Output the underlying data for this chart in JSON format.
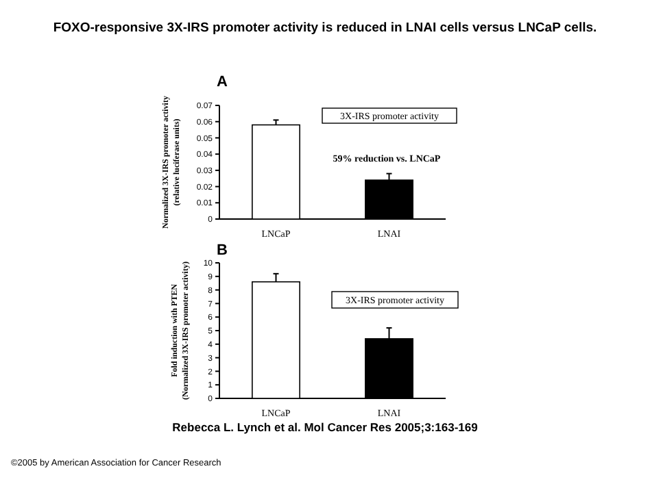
{
  "chart_data": [
    {
      "type": "bar",
      "title": "FOXO-responsive 3X-IRS promoter activity is reduced in LNAI cells versus LNCaP cells.",
      "subtitle": "A",
      "ylabel": "Normalized 3X-IRS promoter activity\n(relative luciferase units)",
      "categories": [
        "LNCaP",
        "LNAI"
      ],
      "values": [
        0.058,
        0.024
      ],
      "errors": [
        0.003,
        0.004
      ],
      "colors": [
        "#ffffff",
        "#000000"
      ],
      "ylim": [
        0,
        0.07
      ],
      "yticks": [
        0,
        0.01,
        0.02,
        0.03,
        0.04,
        0.05,
        0.06,
        0.07
      ],
      "annotations": [
        "3X-IRS promoter activity",
        "59% reduction vs. LNCaP"
      ]
    },
    {
      "type": "bar",
      "title": "B",
      "ylabel": "Fold induction with PTEN\n(Normalized 3X-IRS promoter activity)",
      "categories": [
        "LNCaP",
        "LNAI"
      ],
      "values": [
        8.6,
        4.4
      ],
      "errors": [
        0.6,
        0.8
      ],
      "colors": [
        "#ffffff",
        "#000000"
      ],
      "ylim": [
        0,
        10
      ],
      "yticks": [
        0,
        1,
        2,
        3,
        4,
        5,
        6,
        7,
        8,
        9,
        10
      ],
      "annotations": [
        "3X-IRS promoter activity",
        "Rebecca L. Lynch et al. Mol Cancer Res 2005;3:163-169",
        "©2005 by American Association for Cancer Research"
      ]
    }
  ]
}
